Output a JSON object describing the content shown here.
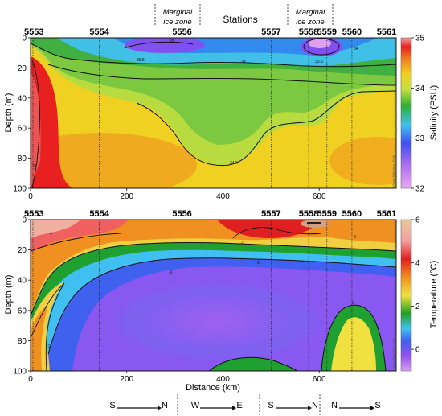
{
  "header": {
    "stations_label": "Stations",
    "zone_left": [
      "Marginal",
      "ice zone"
    ],
    "zone_right": [
      "Marginal",
      "ice zone"
    ]
  },
  "credit": "Ocean Data View / DIVA",
  "directions": [
    {
      "from": "S",
      "to": "N"
    },
    {
      "from": "W",
      "to": "E"
    },
    {
      "from": "S",
      "to": "N"
    },
    {
      "from": "N",
      "to": "S"
    }
  ],
  "colors": {
    "salinity_stops": [
      "#e8a8f0",
      "#a060f0",
      "#3050f0",
      "#40c0f0",
      "#30b030",
      "#c8e040",
      "#f0d020",
      "#f08020",
      "#e82020",
      "#f0a0a0"
    ],
    "temperature_stops": [
      "#d8a0f0",
      "#9050f0",
      "#4060f0",
      "#40c0f0",
      "#20a020",
      "#f0e040",
      "#f09020",
      "#e02020",
      "#f0a0a0",
      "#e8c898"
    ]
  },
  "chart_data": [
    {
      "type": "heatmap",
      "variable": "Salinity",
      "ylabel": "Depth (m)",
      "xlabel": "",
      "colorbar_label": "Salinity (PSU)",
      "xlim": [
        0,
        760
      ],
      "ylim": [
        0,
        100
      ],
      "x_ticks": [
        0,
        200,
        400,
        600
      ],
      "y_ticks": [
        0,
        20,
        40,
        60,
        80,
        100
      ],
      "colorbar_range": [
        32,
        35
      ],
      "colorbar_ticks": [
        32,
        33,
        34,
        35
      ],
      "stations": [
        {
          "name": "5553",
          "x": 5
        },
        {
          "name": "5554",
          "x": 143
        },
        {
          "name": "5556",
          "x": 315
        },
        {
          "name": "5557",
          "x": 500
        },
        {
          "name": "5558",
          "x": 578
        },
        {
          "name": "5559",
          "x": 616
        },
        {
          "name": "5560",
          "x": 668
        },
        {
          "name": "5561",
          "x": 757
        }
      ],
      "contour_labels": [
        "33",
        "33.5",
        "34",
        "33.5",
        "34",
        "34.5",
        "35"
      ],
      "grid": false
    },
    {
      "type": "heatmap",
      "variable": "Temperature",
      "ylabel": "Depth (m)",
      "xlabel": "Distance (km)",
      "colorbar_label": "Temperature (°C)",
      "xlim": [
        0,
        760
      ],
      "ylim": [
        0,
        100
      ],
      "x_ticks": [
        0,
        200,
        400,
        600
      ],
      "y_ticks": [
        0,
        20,
        40,
        60,
        80,
        100
      ],
      "colorbar_range": [
        -1,
        6
      ],
      "colorbar_ticks": [
        0,
        2,
        4,
        6
      ],
      "stations": [
        {
          "name": "5553",
          "x": 5
        },
        {
          "name": "5554",
          "x": 143
        },
        {
          "name": "5556",
          "x": 315
        },
        {
          "name": "5557",
          "x": 500
        },
        {
          "name": "5558",
          "x": 578
        },
        {
          "name": "5559",
          "x": 616
        },
        {
          "name": "5560",
          "x": 668
        },
        {
          "name": "5561",
          "x": 757
        }
      ],
      "contour_labels": [
        "4",
        "2",
        "0",
        "-1",
        "2",
        "0",
        "2"
      ],
      "grid": false
    }
  ]
}
